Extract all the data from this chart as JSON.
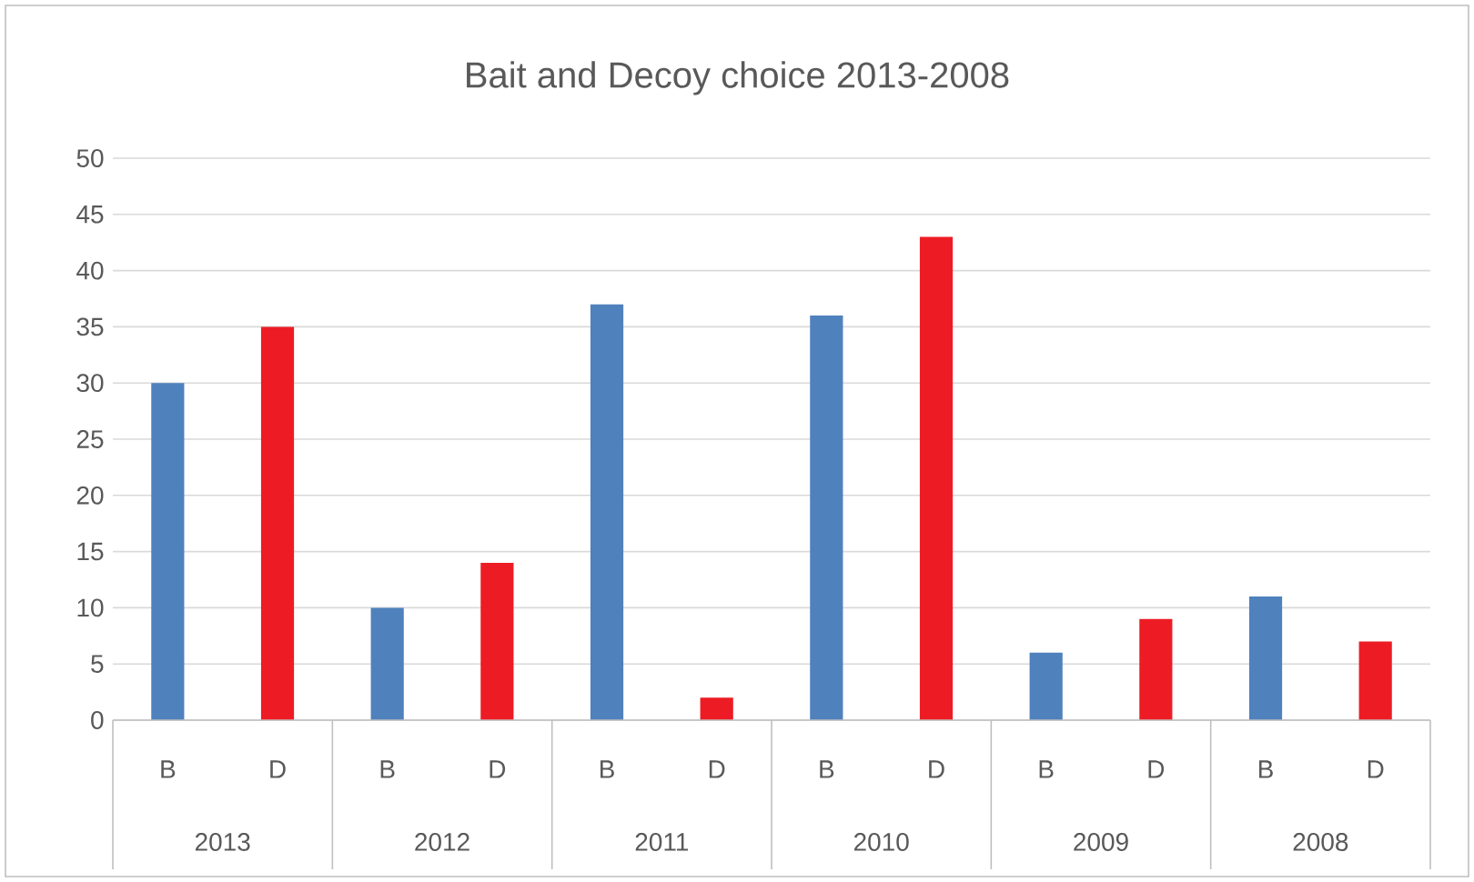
{
  "chart_data": {
    "type": "bar",
    "title": "Bait and Decoy choice 2013-2008",
    "categories": [
      "2013",
      "2012",
      "2011",
      "2010",
      "2009",
      "2008"
    ],
    "series": [
      {
        "name": "B",
        "color": "#4f81bd",
        "values": [
          30,
          10,
          37,
          36,
          6,
          11
        ]
      },
      {
        "name": "D",
        "color": "#ed1c24",
        "values": [
          35,
          14,
          2,
          43,
          9,
          7
        ]
      }
    ],
    "ylim": [
      0,
      50
    ],
    "yticks": [
      0,
      5,
      10,
      15,
      20,
      25,
      30,
      35,
      40,
      45,
      50
    ],
    "grid": "y",
    "legend": false
  }
}
